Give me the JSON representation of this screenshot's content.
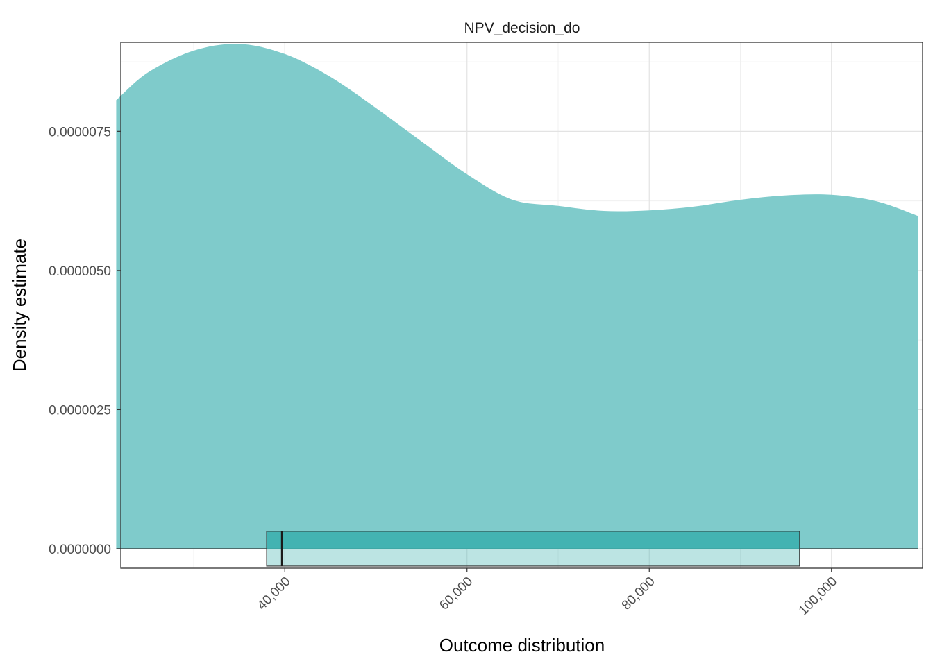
{
  "chart_data": {
    "type": "area",
    "title": "NPV_decision_do",
    "xlabel": "Outcome distribution",
    "ylabel": "Density estimate",
    "xlim": [
      22000,
      110000
    ],
    "ylim": [
      -3.5e-07,
      9.1e-06
    ],
    "x_ticks": [
      {
        "value": 40000,
        "label": "40,000"
      },
      {
        "value": 60000,
        "label": "60,000"
      },
      {
        "value": 80000,
        "label": "80,000"
      },
      {
        "value": 100000,
        "label": "100,000"
      }
    ],
    "y_ticks": [
      {
        "value": 0.0,
        "label": "0.0000000"
      },
      {
        "value": 2.5e-06,
        "label": "0.0000025"
      },
      {
        "value": 5e-06,
        "label": "0.0000050"
      },
      {
        "value": 7.5e-06,
        "label": "0.0000075"
      }
    ],
    "grid": true,
    "fill_color": "#7fcbcb",
    "box_color": "#3fb1b0",
    "density": {
      "x": [
        21500,
        25000,
        30000,
        35000,
        40000,
        45000,
        50000,
        55000,
        60000,
        65000,
        70000,
        75000,
        80000,
        85000,
        90000,
        95000,
        100000,
        105000,
        109500
      ],
      "y": [
        8.06e-06,
        8.56e-06,
        8.95e-06,
        9.07e-06,
        8.89e-06,
        8.48e-06,
        7.92e-06,
        7.32e-06,
        6.73e-06,
        6.27e-06,
        6.16e-06,
        6.07e-06,
        6.08e-06,
        6.15e-06,
        6.27e-06,
        6.35e-06,
        6.36e-06,
        6.24e-06,
        5.98e-06
      ]
    },
    "boxplot": {
      "q1": 38000,
      "median": 39700,
      "q3": 96500
    }
  }
}
